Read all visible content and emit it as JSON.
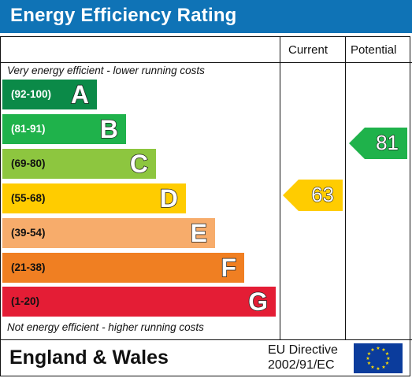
{
  "header": {
    "title": "Energy Efficiency Rating"
  },
  "columns": {
    "current": "Current",
    "potential": "Potential"
  },
  "notes": {
    "top": "Very energy efficient - lower running costs",
    "bottom": "Not energy efficient - higher running costs"
  },
  "bands": [
    {
      "range": "(92-100)",
      "letter": "A",
      "color": "#0b8a48",
      "text_color": "#ffffff"
    },
    {
      "range": "(81-91)",
      "letter": "B",
      "color": "#1fb24b",
      "text_color": "#ffffff"
    },
    {
      "range": "(69-80)",
      "letter": "C",
      "color": "#8dc63f",
      "text_color": "#111111"
    },
    {
      "range": "(55-68)",
      "letter": "D",
      "color": "#ffcc00",
      "text_color": "#111111"
    },
    {
      "range": "(39-54)",
      "letter": "E",
      "color": "#f7ac6b",
      "text_color": "#111111"
    },
    {
      "range": "(21-38)",
      "letter": "F",
      "color": "#f07f22",
      "text_color": "#111111"
    },
    {
      "range": "(1-20)",
      "letter": "G",
      "color": "#e41d35",
      "text_color": "#111111"
    }
  ],
  "ratings": {
    "current": {
      "value": "63",
      "band": "D",
      "color": "#ffcc00"
    },
    "potential": {
      "value": "81",
      "band": "B",
      "color": "#1fb24b"
    }
  },
  "footer": {
    "region": "England & Wales",
    "directive_line1": "EU Directive",
    "directive_line2": "2002/91/EC"
  }
}
